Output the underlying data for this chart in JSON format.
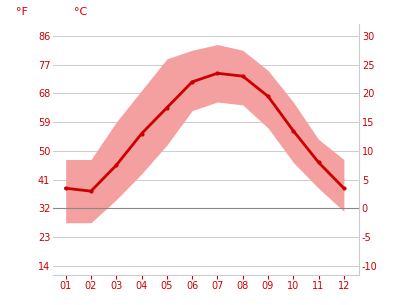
{
  "months": [
    1,
    2,
    3,
    4,
    5,
    6,
    7,
    8,
    9,
    10,
    11,
    12
  ],
  "month_labels": [
    "01",
    "02",
    "03",
    "04",
    "05",
    "06",
    "07",
    "08",
    "09",
    "10",
    "11",
    "12"
  ],
  "mean_c": [
    3.5,
    3.0,
    7.5,
    13.0,
    17.5,
    22.0,
    23.5,
    23.0,
    19.5,
    13.5,
    8.0,
    3.5
  ],
  "high_c": [
    8.5,
    8.5,
    15.0,
    20.5,
    26.0,
    27.5,
    28.5,
    27.5,
    24.0,
    18.5,
    12.0,
    8.5
  ],
  "low_c": [
    -2.5,
    -2.5,
    1.5,
    6.0,
    11.0,
    17.0,
    18.5,
    18.0,
    14.0,
    8.0,
    3.5,
    -0.5
  ],
  "yticks_c": [
    -10,
    -5,
    0,
    5,
    10,
    15,
    20,
    25,
    30
  ],
  "yticks_f": [
    14,
    23,
    32,
    41,
    50,
    59,
    68,
    77,
    86
  ],
  "ylim_c": [
    -11.5,
    32.0
  ],
  "xlim": [
    0.5,
    12.6
  ],
  "line_color": "#cc0000",
  "band_color": "#f5a0a0",
  "zero_line_color": "#888888",
  "grid_color": "#cccccc",
  "tick_color": "#cc0000",
  "bg_color": "#ffffff",
  "label_f": "°F",
  "label_c": "°C"
}
